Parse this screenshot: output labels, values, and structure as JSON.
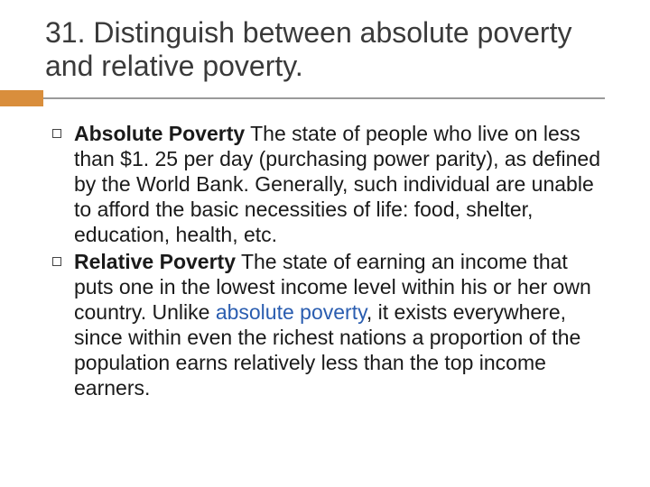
{
  "colors": {
    "accent": "#d98e3c",
    "divider": "#9a9a9a",
    "title": "#3a3a3a",
    "body": "#1a1a1a",
    "link": "#2a5db0",
    "background": "#ffffff"
  },
  "typography": {
    "title_fontsize": 32,
    "body_fontsize": 23,
    "font_family": "Arial"
  },
  "title": "31. Distinguish between absolute poverty and relative poverty.",
  "bullets": [
    {
      "label": "Absolute Poverty",
      "body": "   The state of people who live on less than $1. 25 per day (purchasing power parity), as defined by the World Bank. Generally, such individual are unable to afford the basic necessities of life: food, shelter, education, health, etc."
    },
    {
      "label": "Relative Poverty",
      "body_pre": "    The state of earning an income that puts one in the lowest income level within his or her own country. Unlike ",
      "link_text": "absolute poverty",
      "body_post": ", it exists everywhere, since within even the richest nations a proportion of the population earns relatively less than the top income earners."
    }
  ]
}
